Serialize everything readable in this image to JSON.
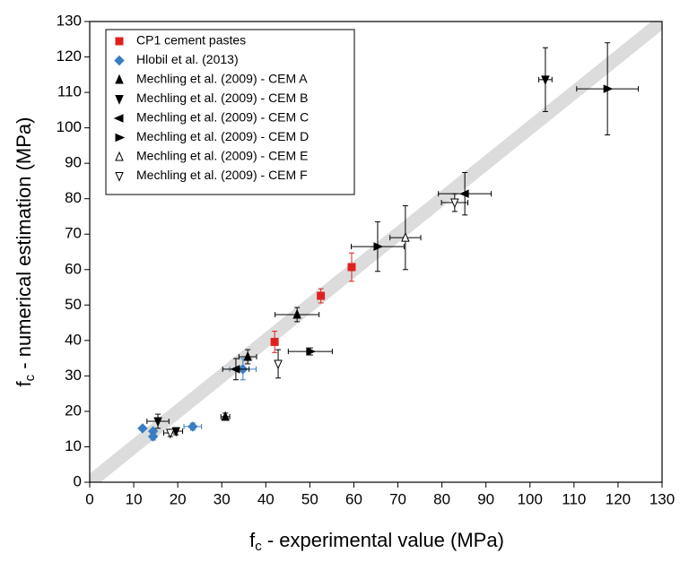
{
  "chart_data": {
    "type": "scatter",
    "xlabel": {
      "main": "f",
      "sub": "c",
      "rest": " - experimental value (MPa)"
    },
    "ylabel": {
      "main": "f",
      "sub": "c",
      "rest": " - numerical estimation (MPa)"
    },
    "xlim": [
      0,
      130
    ],
    "ylim": [
      0,
      130
    ],
    "xticks": [
      0,
      10,
      20,
      30,
      40,
      50,
      60,
      70,
      80,
      90,
      100,
      110,
      120,
      130
    ],
    "yticks": [
      0,
      10,
      20,
      30,
      40,
      50,
      60,
      70,
      80,
      90,
      100,
      110,
      120,
      130
    ],
    "legend": "upper left",
    "series": [
      {
        "name": "CP1 cement pastes",
        "color": "#e02020",
        "marker": "square",
        "filled": true,
        "x": [
          42,
          52.5,
          59.5
        ],
        "values": [
          39.6,
          52.6,
          60.7
        ],
        "xerr": [
          null,
          null,
          null
        ],
        "yerr": [
          3,
          2,
          4
        ]
      },
      {
        "name": "Hlobil et al. (2013)",
        "color": "#3a7dc0",
        "marker": "diamond",
        "filled": true,
        "x": [
          12,
          14.4,
          14.4,
          23.4,
          34.8
        ],
        "values": [
          15.2,
          14.4,
          12.9,
          15.7,
          31.9
        ],
        "xerr": [
          null,
          null,
          null,
          2,
          3
        ],
        "yerr": [
          null,
          null,
          1,
          1,
          3
        ]
      },
      {
        "name": "Mechling et al. (2009) - CEM A",
        "color": "#000000",
        "marker": "triangle-up",
        "filled": true,
        "x": [
          47.1,
          30.8,
          35.9
        ],
        "values": [
          47.3,
          18.5,
          35.4
        ],
        "xerr": [
          5,
          1,
          2
        ],
        "yerr": [
          2,
          1,
          2
        ]
      },
      {
        "name": "Mechling et al. (2009) - CEM B",
        "color": "#000000",
        "marker": "triangle-down",
        "filled": true,
        "x": [
          103.5,
          15.5,
          19.6
        ],
        "values": [
          113.6,
          17.2,
          14.4
        ],
        "xerr": [
          1.5,
          2.5,
          1.5
        ],
        "yerr": [
          9,
          2,
          1
        ]
      },
      {
        "name": "Mechling et al. (2009) - CEM C",
        "color": "#000000",
        "marker": "triangle-left",
        "filled": true,
        "x": [
          85.2,
          33.2
        ],
        "values": [
          81.4,
          31.9
        ],
        "xerr": [
          6,
          3
        ],
        "yerr": [
          6,
          3
        ]
      },
      {
        "name": "Mechling et al. (2009) - CEM D",
        "color": "#000000",
        "marker": "triangle-right",
        "filled": true,
        "x": [
          117.6,
          65.4,
          50.1
        ],
        "values": [
          111,
          66.5,
          36.9
        ],
        "xerr": [
          7,
          6,
          5
        ],
        "yerr": [
          13,
          7,
          1
        ]
      },
      {
        "name": "Mechling et al. (2009) - CEM E",
        "color": "#000000",
        "marker": "triangle-up",
        "filled": false,
        "x": [
          71.7
        ],
        "values": [
          69
        ],
        "xerr": [
          3.5
        ],
        "yerr": [
          9
        ]
      },
      {
        "name": "Mechling et al. (2009) - CEM F",
        "color": "#000000",
        "marker": "triangle-down",
        "filled": false,
        "x": [
          82.9,
          42.8,
          18.3
        ],
        "values": [
          78.9,
          33.4,
          13.9
        ],
        "xerr": [
          3,
          null,
          1.5
        ],
        "yerr": [
          2.5,
          4,
          1
        ]
      }
    ]
  }
}
